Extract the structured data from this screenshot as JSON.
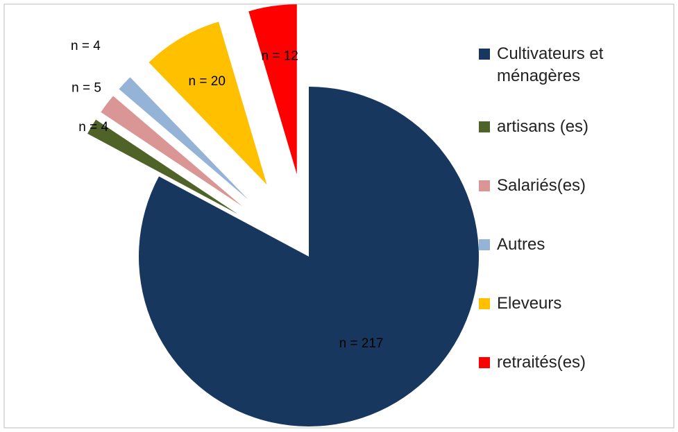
{
  "chart_data": {
    "type": "pie",
    "categories": [
      "Cultivateurs et ménagères",
      "artisans (es)",
      "Salariés(es)",
      "Autres",
      "Eleveurs",
      "retraités(es)"
    ],
    "values": [
      217,
      4,
      5,
      4,
      20,
      12
    ],
    "value_labels": [
      "n = 217",
      "n = 4",
      "n = 5",
      "n = 4",
      "n = 20",
      "n = 12"
    ],
    "colors": [
      "#17375e",
      "#4f6228",
      "#d99694",
      "#95b3d7",
      "#ffc000",
      "#ff0000"
    ],
    "legend": "right"
  }
}
